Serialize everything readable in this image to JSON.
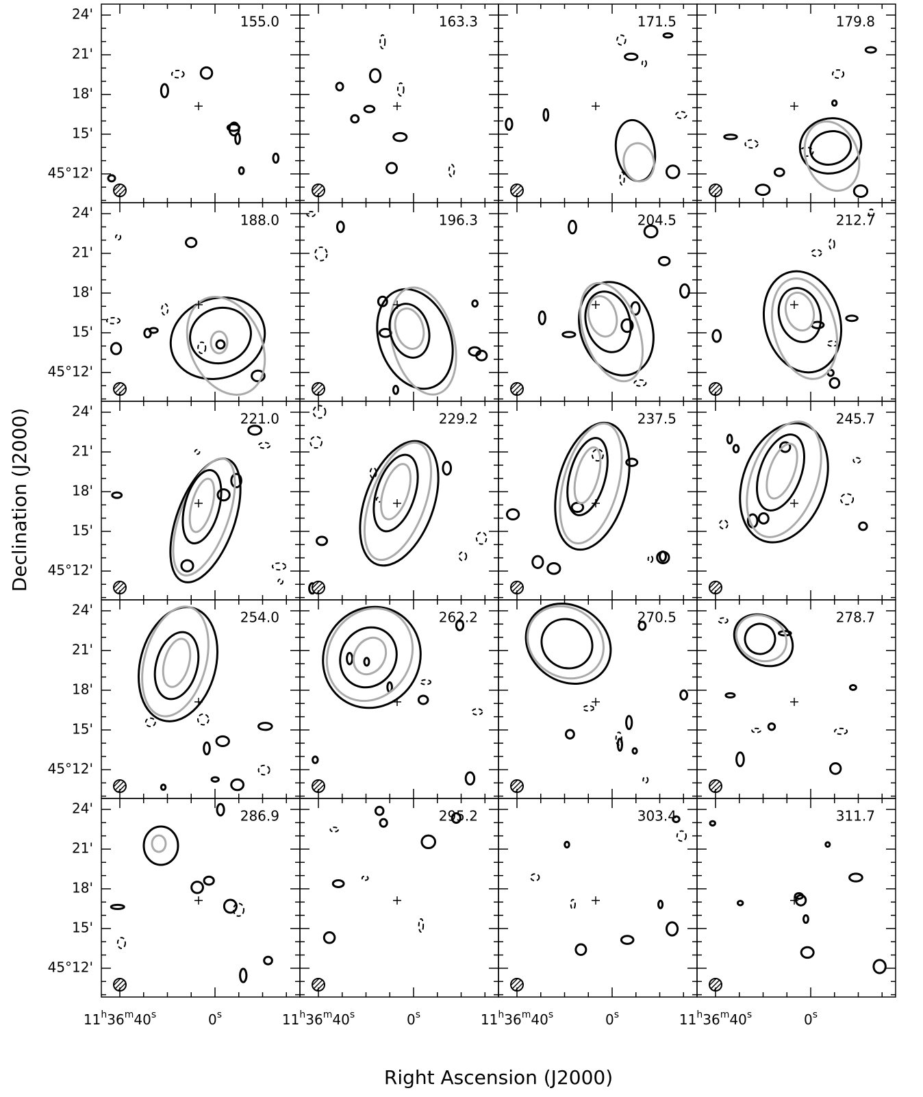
{
  "figure": {
    "panels": [
      {
        "label": "155.0"
      },
      {
        "label": "163.3"
      },
      {
        "label": "171.5"
      },
      {
        "label": "179.8"
      },
      {
        "label": "188.0"
      },
      {
        "label": "196.3"
      },
      {
        "label": "204.5"
      },
      {
        "label": "212.7"
      },
      {
        "label": "221.0"
      },
      {
        "label": "229.2"
      },
      {
        "label": "237.5"
      },
      {
        "label": "245.7"
      },
      {
        "label": "254.0"
      },
      {
        "label": "262.2"
      },
      {
        "label": "270.5"
      },
      {
        "label": "278.7"
      },
      {
        "label": "286.9"
      },
      {
        "label": "295.2"
      },
      {
        "label": "303.4"
      },
      {
        "label": "311.7"
      }
    ],
    "y_axis_label": "Declination (J2000)",
    "x_axis_label": "Right Ascension (J2000)",
    "y_tick_labels": [
      "24'",
      "21'",
      "18'",
      "15'",
      "45°12'"
    ],
    "x_tick_labels": [
      "11h36m40s",
      "0s"
    ]
  }
}
